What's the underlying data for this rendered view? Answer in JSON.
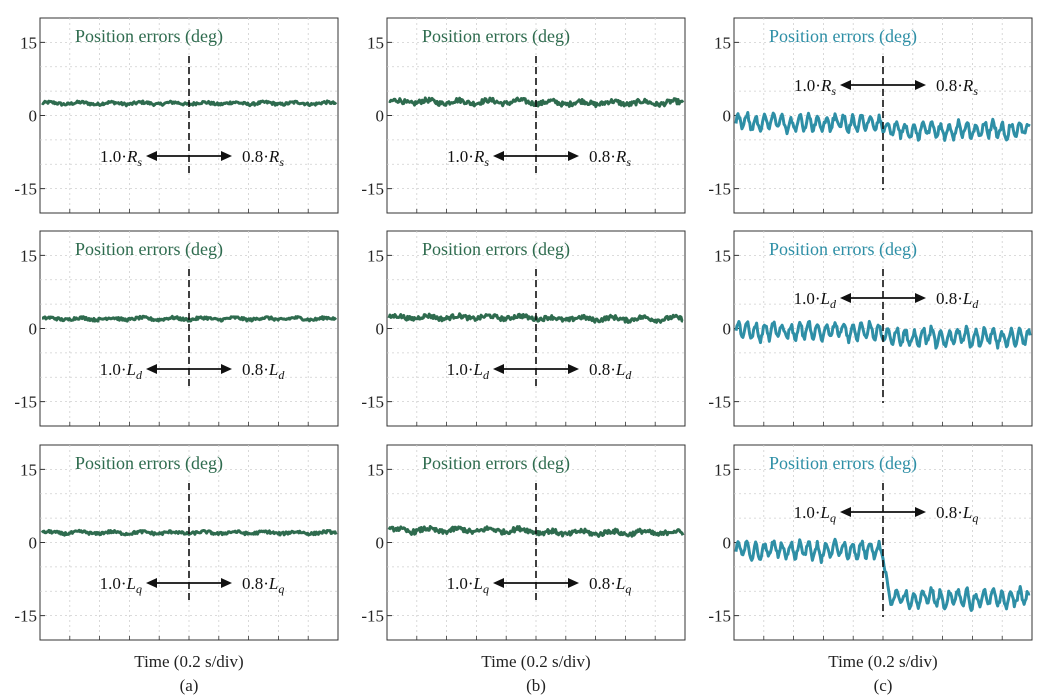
{
  "chart_data": {
    "type": "line",
    "x_unit_label": "Time (0.2 s/div)",
    "columns": [
      {
        "label": "(a)",
        "color": "#2e6b4e"
      },
      {
        "label": "(b)",
        "color": "#2e6b4e"
      },
      {
        "label": "(c)",
        "color": "#2e8fa6"
      }
    ],
    "y_ticks": [
      15,
      0,
      -15
    ],
    "ylim": [
      -20,
      20
    ],
    "x_divisions": 10,
    "grid": true,
    "panels": [
      {
        "row": 0,
        "col": 0,
        "title": "Position errors (deg)",
        "left_text": "1.0·",
        "right_text": "0.8·",
        "symbol": "R",
        "sub": "s",
        "change_at_div": 5,
        "before_mean": 2.5,
        "after_mean": 2.5,
        "ripple": 0.6,
        "spikes": 0
      },
      {
        "row": 0,
        "col": 1,
        "title": "Position errors (deg)",
        "left_text": "1.0·",
        "right_text": "0.8·",
        "symbol": "R",
        "sub": "s",
        "change_at_div": 5,
        "before_mean": 2.8,
        "after_mean": 2.6,
        "ripple": 1.0,
        "spikes": 0
      },
      {
        "row": 0,
        "col": 2,
        "title": "Position errors (deg)",
        "left_text": "1.0·",
        "right_text": "0.8·",
        "symbol": "R",
        "sub": "s",
        "change_at_div": 5,
        "before_mean": -1.5,
        "after_mean": -3.0,
        "ripple": 1.0,
        "spikes": 1.8
      },
      {
        "row": 1,
        "col": 0,
        "title": "Position errors (deg)",
        "left_text": "1.0·",
        "right_text": "0.8·",
        "symbol": "L",
        "sub": "d",
        "change_at_div": 5,
        "before_mean": 2.0,
        "after_mean": 2.0,
        "ripple": 0.6,
        "spikes": 0
      },
      {
        "row": 1,
        "col": 1,
        "title": "Position errors (deg)",
        "left_text": "1.0·",
        "right_text": "0.8·",
        "symbol": "L",
        "sub": "d",
        "change_at_div": 5,
        "before_mean": 2.3,
        "after_mean": 2.0,
        "ripple": 0.9,
        "spikes": 0
      },
      {
        "row": 1,
        "col": 2,
        "title": "Position errors (deg)",
        "left_text": "1.0·",
        "right_text": "0.8·",
        "symbol": "L",
        "sub": "d",
        "change_at_div": 5,
        "before_mean": -0.5,
        "after_mean": -1.8,
        "ripple": 1.0,
        "spikes": 2.0
      },
      {
        "row": 2,
        "col": 0,
        "title": "Position errors (deg)",
        "left_text": "1.0·",
        "right_text": "0.8·",
        "symbol": "L",
        "sub": "q",
        "change_at_div": 5,
        "before_mean": 2.0,
        "after_mean": 2.0,
        "ripple": 0.6,
        "spikes": 0
      },
      {
        "row": 2,
        "col": 1,
        "title": "Position errors (deg)",
        "left_text": "1.0·",
        "right_text": "0.8·",
        "symbol": "L",
        "sub": "q",
        "change_at_div": 5,
        "before_mean": 2.5,
        "after_mean": 2.0,
        "ripple": 1.0,
        "spikes": 0
      },
      {
        "row": 2,
        "col": 2,
        "title": "Position errors (deg)",
        "left_text": "1.0·",
        "right_text": "0.8·",
        "symbol": "L",
        "sub": "q",
        "change_at_div": 5,
        "before_mean": -1.5,
        "after_mean": -11.5,
        "ripple": 1.0,
        "spikes": 2.0
      }
    ]
  }
}
